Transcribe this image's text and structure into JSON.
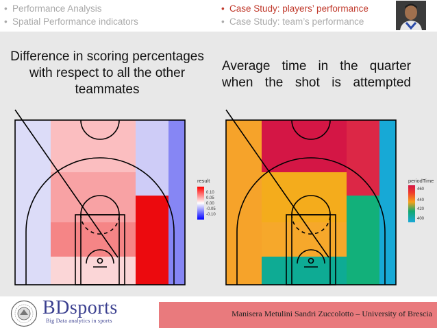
{
  "nav": {
    "left": [
      "Performance Analysis",
      "Spatial Performance indicators"
    ],
    "right": [
      "Case Study: players’ performance",
      "Case Study: team’s performance"
    ]
  },
  "titles": {
    "left": "Difference in scoring percentages with respect to all the other teammates",
    "right_lines": [
      "Average time in the quarter",
      "when the shot is attempted"
    ]
  },
  "left_plot": {
    "legend_title": "result",
    "legend_ticks": [
      "0.10",
      "0.05",
      "0.00",
      "-0.05",
      "-0.10"
    ],
    "colors": {
      "high": "#ff0000",
      "mid": "#ffffff",
      "low": "#0000ff"
    }
  },
  "right_plot": {
    "legend_title": "periodTime",
    "legend_ticks": [
      "460",
      "440",
      "420",
      "400"
    ],
    "colors": {
      "c460": "#d41645",
      "c440": "#f38a1f",
      "c420": "#12a870",
      "c400": "#1aa8d8"
    }
  },
  "footer": {
    "logo_main": "BDsports",
    "logo_sub": "Big Data analytics in sports",
    "authors": "Manisera Metulini Sandri Zuccolotto – University of Brescia"
  }
}
